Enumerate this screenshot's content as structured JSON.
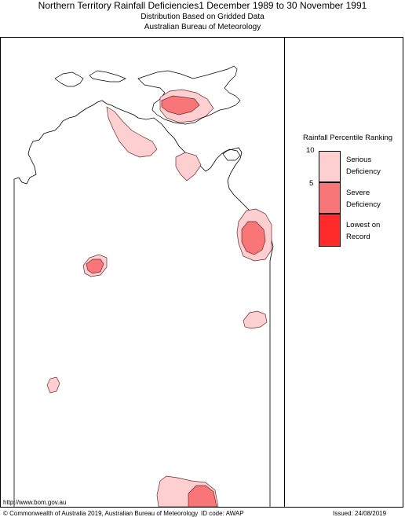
{
  "header": {
    "title": "Northern Territory Rainfall Deficiencies1 December 1989 to 30 November 1991",
    "subtitle1": "Distribution Based on Gridded Data",
    "subtitle2": "Australian Bureau of Meteorology"
  },
  "legend": {
    "title": "Rainfall Percentile Ranking",
    "ticks": [
      "10",
      "5"
    ],
    "items": [
      {
        "label_line1": "Serious",
        "label_line2": "Deficiency",
        "color": "#fdcfd1"
      },
      {
        "label_line1": "Severe",
        "label_line2": "Deficiency",
        "color": "#f87578"
      },
      {
        "label_line1": "Lowest on",
        "label_line2": "Record",
        "color": "#ff2a2a"
      }
    ]
  },
  "footer": {
    "url": "http://www.bom.gov.au",
    "copyright": "© Commonwealth of Australia 2019, Australian Bureau of Meteorology",
    "id_code": "ID code: AWAP",
    "issued": "Issued: 24/08/2019"
  },
  "colors": {
    "serious": "#fdcfd1",
    "severe": "#f87578",
    "lowest": "#ff2a2a",
    "outline": "#6b2a2a"
  }
}
